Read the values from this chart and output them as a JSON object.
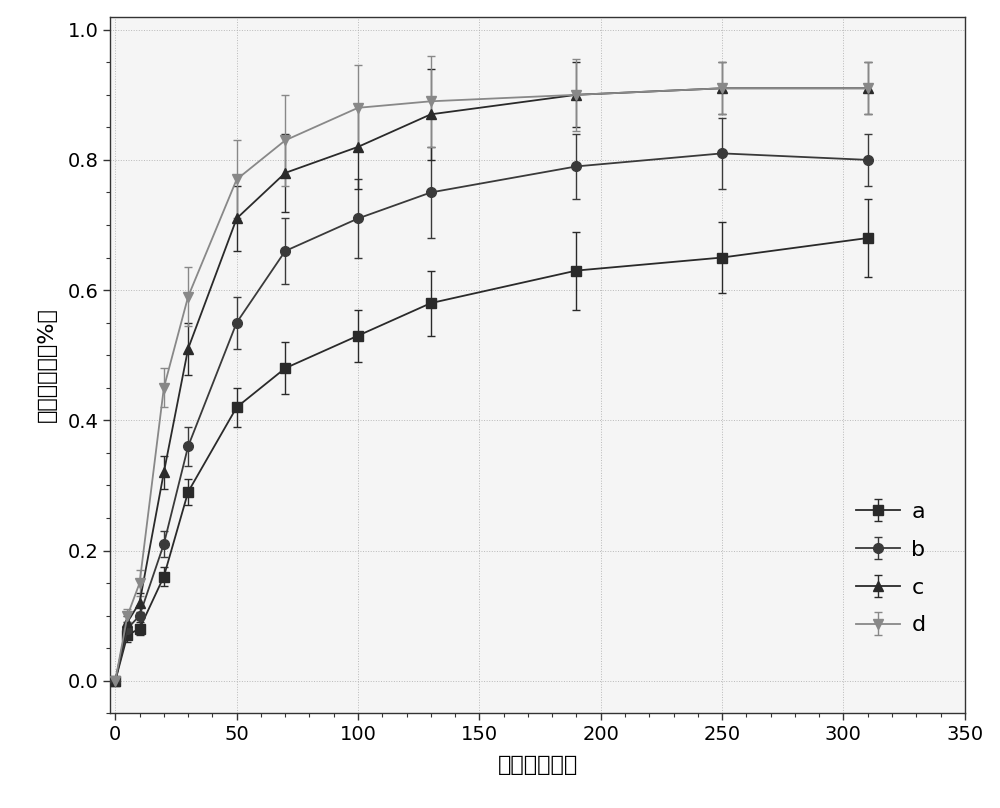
{
  "series": {
    "a": {
      "x": [
        0,
        5,
        10,
        20,
        30,
        50,
        70,
        100,
        130,
        190,
        250,
        310
      ],
      "y": [
        0.0,
        0.07,
        0.08,
        0.16,
        0.29,
        0.42,
        0.48,
        0.53,
        0.58,
        0.63,
        0.65,
        0.68
      ],
      "yerr": [
        0.0,
        0.01,
        0.01,
        0.015,
        0.02,
        0.03,
        0.04,
        0.04,
        0.05,
        0.06,
        0.055,
        0.06
      ],
      "marker": "s",
      "label": "a",
      "color": "#2a2a2a"
    },
    "b": {
      "x": [
        0,
        5,
        10,
        20,
        30,
        50,
        70,
        100,
        130,
        190,
        250,
        310
      ],
      "y": [
        0.0,
        0.08,
        0.1,
        0.21,
        0.36,
        0.55,
        0.66,
        0.71,
        0.75,
        0.79,
        0.81,
        0.8
      ],
      "yerr": [
        0.0,
        0.01,
        0.015,
        0.02,
        0.03,
        0.04,
        0.05,
        0.06,
        0.07,
        0.05,
        0.055,
        0.04
      ],
      "marker": "o",
      "label": "b",
      "color": "#3a3a3a"
    },
    "c": {
      "x": [
        0,
        5,
        10,
        20,
        30,
        50,
        70,
        100,
        130,
        190,
        250,
        310
      ],
      "y": [
        0.0,
        0.09,
        0.12,
        0.32,
        0.51,
        0.71,
        0.78,
        0.82,
        0.87,
        0.9,
        0.91,
        0.91
      ],
      "yerr": [
        0.0,
        0.01,
        0.015,
        0.025,
        0.04,
        0.05,
        0.06,
        0.065,
        0.07,
        0.05,
        0.04,
        0.04
      ],
      "marker": "^",
      "label": "c",
      "color": "#2a2a2a"
    },
    "d": {
      "x": [
        0,
        5,
        10,
        20,
        30,
        50,
        70,
        100,
        130,
        190,
        250,
        310
      ],
      "y": [
        0.0,
        0.1,
        0.15,
        0.45,
        0.59,
        0.77,
        0.83,
        0.88,
        0.89,
        0.9,
        0.91,
        0.91
      ],
      "yerr": [
        0.0,
        0.01,
        0.02,
        0.03,
        0.045,
        0.06,
        0.07,
        0.065,
        0.07,
        0.055,
        0.04,
        0.04
      ],
      "marker": "v",
      "label": "d",
      "color": "#888888"
    }
  },
  "xlabel": "时间（分钟）",
  "ylabel": "累计释放率（%）",
  "xlim": [
    -2,
    350
  ],
  "ylim": [
    -0.05,
    1.02
  ],
  "xticks": [
    0,
    50,
    100,
    150,
    200,
    250,
    300,
    350
  ],
  "yticks": [
    0.0,
    0.2,
    0.4,
    0.6,
    0.8,
    1.0
  ],
  "figsize": [
    10.0,
    8.08
  ],
  "dpi": 100,
  "bg_color": "#ffffff",
  "plot_bg_color": "#f5f5f5",
  "marker_size": 7,
  "line_width": 1.3,
  "capsize": 3,
  "elinewidth": 1.0
}
